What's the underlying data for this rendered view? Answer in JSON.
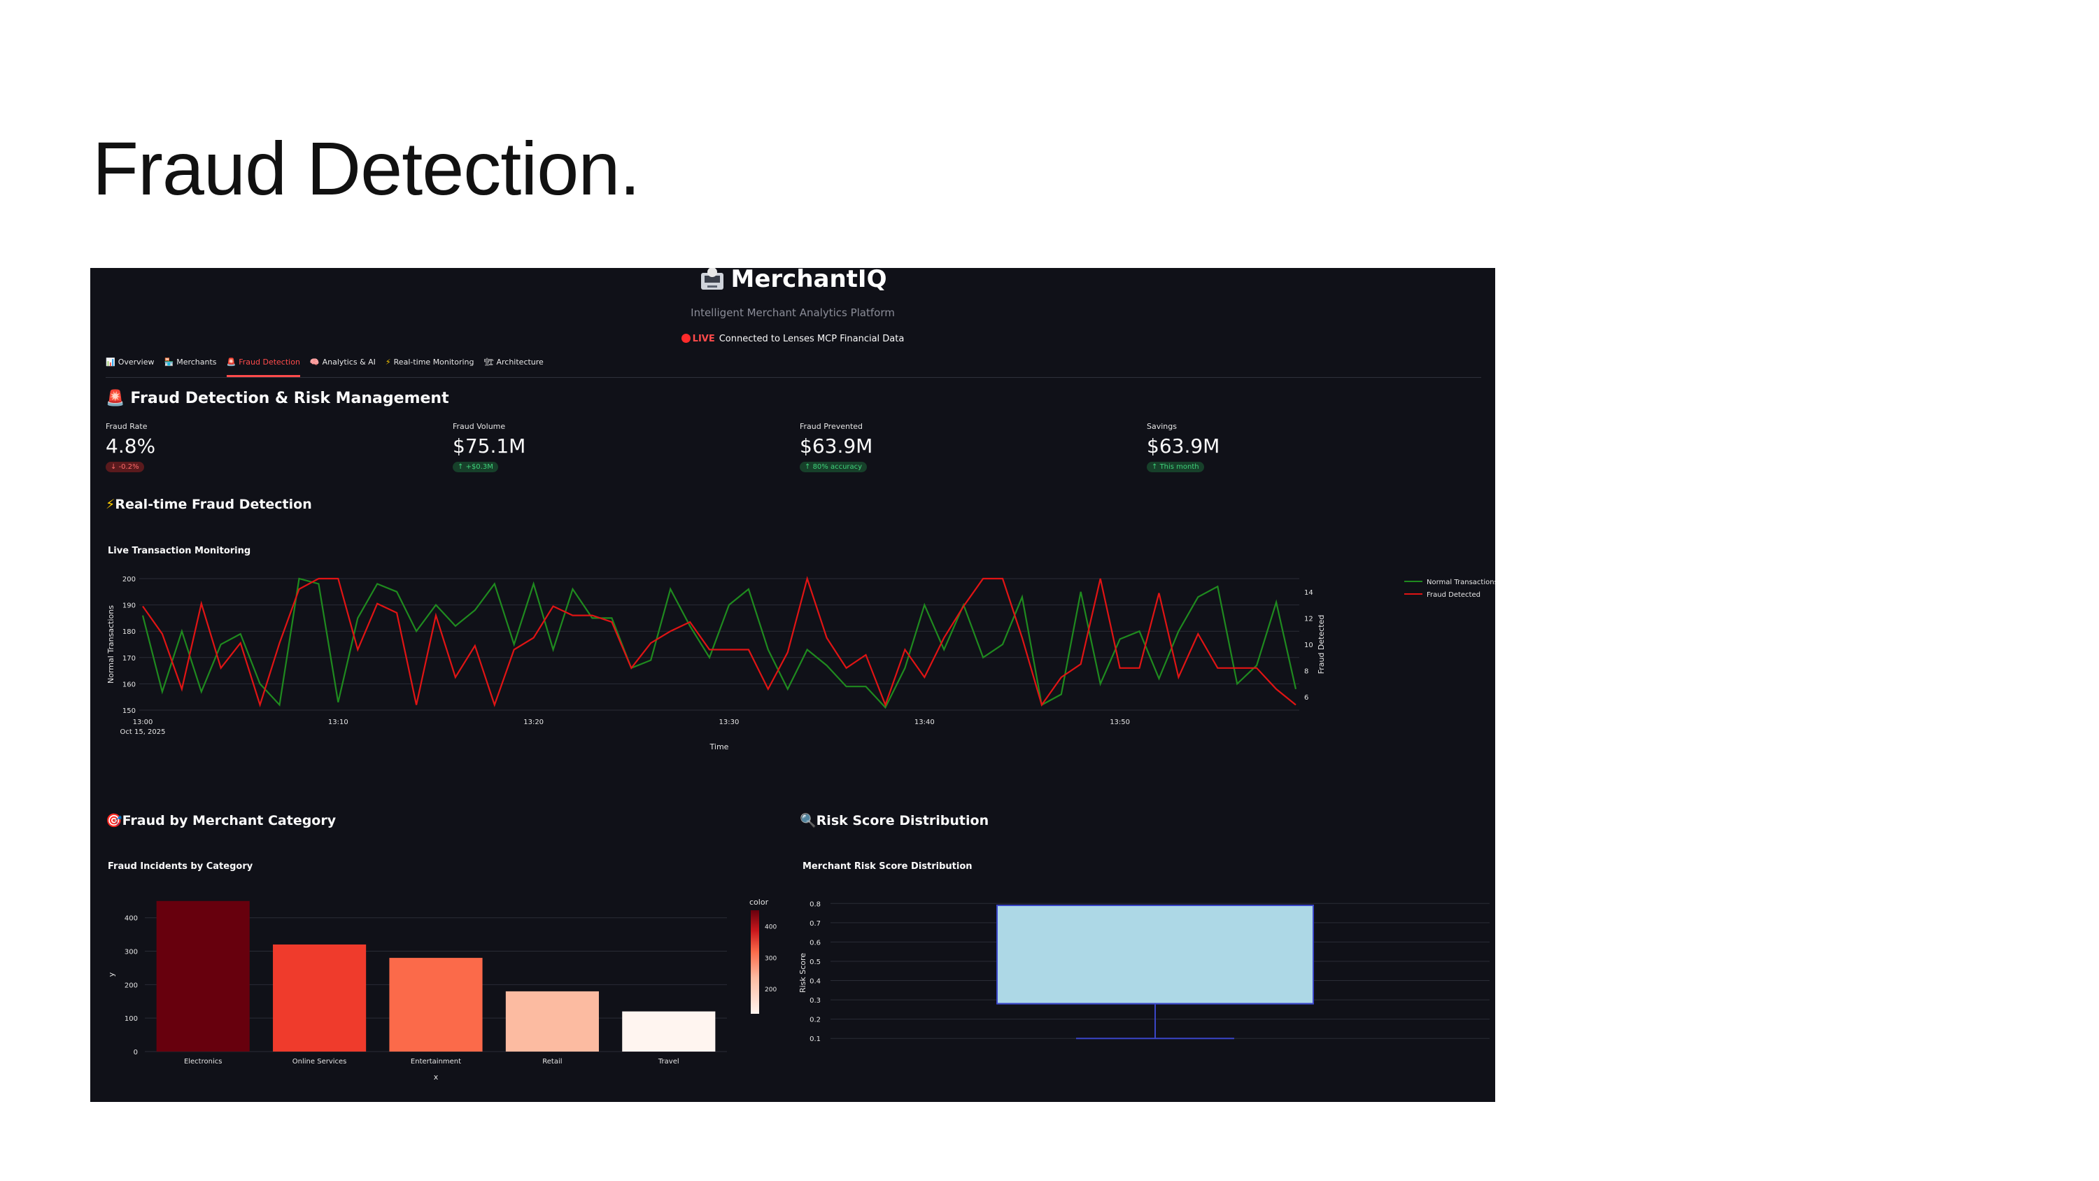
{
  "slide": {
    "title": "Fraud Detection."
  },
  "app": {
    "title": "MerchantIQ",
    "title_icon": "atm-icon",
    "subtitle": "Intelligent Merchant Analytics Platform",
    "status": {
      "badge": "LIVE",
      "text": "Connected to Lenses MCP Financial Data"
    },
    "tabs": [
      {
        "label": "Overview",
        "icon": "chart-icon"
      },
      {
        "label": "Merchants",
        "icon": "store-icon"
      },
      {
        "label": "Fraud Detection",
        "icon": "alarm-icon"
      },
      {
        "label": "Analytics & AI",
        "icon": "brain-icon"
      },
      {
        "label": "Real-time Monitoring",
        "icon": "lightning-icon"
      },
      {
        "label": "Architecture",
        "icon": "building-icon"
      }
    ],
    "active_tab": "Fraud Detection",
    "section_title": "Fraud Detection & Risk Management",
    "metrics": [
      {
        "label": "Fraud Rate",
        "value": "4.8%",
        "delta": "-0.2%",
        "delta_dir": "down"
      },
      {
        "label": "Fraud Volume",
        "value": "$75.1M",
        "delta": "+$0.3M",
        "delta_dir": "up"
      },
      {
        "label": "Fraud Prevented",
        "value": "$63.9M",
        "delta": "80% accuracy",
        "delta_dir": "up"
      },
      {
        "label": "Savings",
        "value": "$63.9M",
        "delta": "This month",
        "delta_dir": "up"
      }
    ],
    "realtime_title": "Real-time Fraud Detection",
    "category_title": "Fraud by Merchant Category",
    "risk_title": "Risk Score Distribution",
    "colors": {
      "background": "#101118",
      "accent": "#ff4b4b",
      "normal_line": "#1f8a1f",
      "fraud_line": "#e01414"
    }
  },
  "chart_data": [
    {
      "type": "line",
      "title": "Live Transaction Monitoring",
      "xlabel": "Time",
      "ylabel": "Normal Transactions",
      "y2label": "Fraud Detected",
      "x_ticks": [
        "13:00",
        "13:10",
        "13:20",
        "13:30",
        "13:40",
        "13:50"
      ],
      "x_date_label": "Oct 15, 2025",
      "ylim": [
        150,
        200
      ],
      "y_ticks": [
        "150",
        "160",
        "170",
        "180",
        "190",
        "200"
      ],
      "y2lim": [
        5,
        15
      ],
      "y2_ticks": [
        "6",
        "8",
        "10",
        "12",
        "14"
      ],
      "legend_position": "top-right",
      "grid": true,
      "series": [
        {
          "name": "Normal Transactions",
          "axis": "y",
          "color": "#1f8a1f",
          "values": [
            186,
            157,
            180,
            157,
            175,
            179,
            160,
            152,
            200,
            198,
            153,
            185,
            198,
            195,
            180,
            190,
            182,
            188,
            198,
            175,
            198,
            173,
            196,
            185,
            185,
            166,
            169,
            196,
            182,
            170,
            190,
            196,
            173,
            158,
            173,
            167,
            159,
            159,
            151,
            166,
            190,
            173,
            190,
            170,
            175,
            193,
            152,
            156,
            195,
            160,
            177,
            180,
            162,
            180,
            193,
            197,
            160,
            167,
            191,
            158
          ]
        },
        {
          "name": "Fraud Detected",
          "axis": "y2",
          "color": "#e01414",
          "values": [
            12.9,
            10.8,
            6.6,
            13.1,
            8.2,
            10.1,
            5.4,
            10.1,
            14.2,
            15,
            15,
            9.6,
            13.1,
            12.4,
            5.4,
            12.2,
            7.5,
            9.9,
            5.4,
            9.6,
            10.5,
            12.9,
            12.2,
            12.2,
            11.7,
            8.2,
            10.1,
            11.0,
            11.7,
            9.6,
            9.6,
            9.6,
            6.6,
            9.4,
            15,
            10.5,
            8.2,
            9.2,
            5.4,
            9.6,
            7.5,
            10.5,
            12.9,
            15,
            15,
            10.5,
            5.4,
            7.5,
            8.5,
            15,
            8.2,
            8.2,
            13.9,
            7.5,
            10.8,
            8.2,
            8.2,
            8.2,
            6.6,
            5.4
          ]
        }
      ]
    },
    {
      "type": "bar",
      "title": "Fraud Incidents by Category",
      "xlabel": "x",
      "ylabel": "y",
      "categories": [
        "Electronics",
        "Online Services",
        "Entertainment",
        "Retail",
        "Travel"
      ],
      "values": [
        450,
        320,
        280,
        180,
        120
      ],
      "ylim": [
        0,
        460
      ],
      "y_ticks": [
        "0",
        "100",
        "200",
        "300",
        "400"
      ],
      "colorbar": {
        "title": "color",
        "ticks": [
          "200",
          "300",
          "400"
        ],
        "range": [
          120,
          450
        ]
      },
      "bar_colors": [
        "#67000d",
        "#ef3b2c",
        "#fb6a4a",
        "#fcbba1",
        "#fff5f0"
      ]
    },
    {
      "type": "box",
      "title": "Merchant Risk Score Distribution",
      "ylabel": "Risk Score",
      "ylim": [
        0.05,
        0.83
      ],
      "y_ticks": [
        "0.1",
        "0.2",
        "0.3",
        "0.4",
        "0.5",
        "0.6",
        "0.7",
        "0.8"
      ],
      "box": {
        "min": 0.1,
        "q1": 0.28,
        "median": 0.28,
        "q3": 0.79,
        "max": 0.79
      },
      "fill": "#add8e6"
    }
  ]
}
